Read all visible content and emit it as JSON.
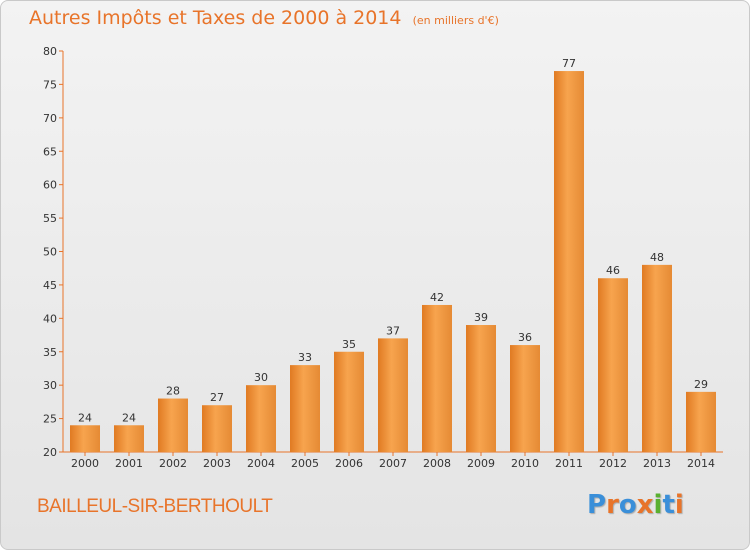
{
  "header": {
    "title": "Autres Impôts et Taxes de 2000 à 2014",
    "unit": "(en milliers d'€)"
  },
  "footer": {
    "commune": "BAILLEUL-SIR-BERTHOULT",
    "brand": "Proxiti"
  },
  "colors": {
    "bar_light": "#f7a44e",
    "bar_dark": "#e07a22",
    "axis": "#e8742a",
    "title": "#e8742a",
    "brand_letters": [
      "#3a8fd9",
      "#e8742a",
      "#3a8fd9",
      "#e8742a",
      "#5ab030",
      "#3a8fd9",
      "#e8742a"
    ]
  },
  "chart_data": {
    "type": "bar",
    "title": "Autres Impôts et Taxes de 2000 à 2014",
    "subtitle": "(en milliers d'€)",
    "xlabel": "",
    "ylabel": "",
    "categories": [
      "2000",
      "2001",
      "2002",
      "2003",
      "2004",
      "2005",
      "2006",
      "2007",
      "2008",
      "2009",
      "2010",
      "2011",
      "2012",
      "2013",
      "2014"
    ],
    "values": [
      24,
      24,
      28,
      27,
      30,
      33,
      35,
      37,
      42,
      39,
      36,
      77,
      46,
      48,
      29
    ],
    "ylim": [
      20,
      80
    ],
    "yticks": [
      20,
      25,
      30,
      35,
      40,
      45,
      50,
      55,
      60,
      65,
      70,
      75,
      80
    ],
    "grid": false,
    "legend": "none"
  }
}
